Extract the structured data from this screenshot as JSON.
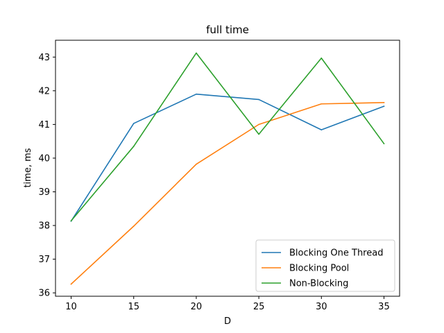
{
  "chart_data": {
    "type": "line",
    "title": "full time",
    "xlabel": "D",
    "ylabel": "time, ms",
    "x": [
      10,
      15,
      20,
      25,
      30,
      35
    ],
    "xticks": [
      10,
      15,
      20,
      25,
      30,
      35
    ],
    "yticks": [
      36,
      37,
      38,
      39,
      40,
      41,
      42,
      43
    ],
    "xlim": [
      8.75,
      36.25
    ],
    "ylim": [
      35.9,
      43.5
    ],
    "grid": false,
    "legend_position": "lower-right",
    "series": [
      {
        "name": "Blocking One Thread",
        "color": "#1f77b4",
        "values": [
          38.13,
          41.03,
          41.9,
          41.74,
          40.84,
          41.54
        ]
      },
      {
        "name": "Blocking Pool",
        "color": "#ff7f0e",
        "values": [
          36.26,
          37.98,
          39.82,
          41.0,
          41.61,
          41.65
        ]
      },
      {
        "name": "Non-Blocking",
        "color": "#2ca02c",
        "values": [
          38.14,
          40.35,
          43.12,
          40.71,
          42.97,
          40.43
        ]
      }
    ]
  }
}
